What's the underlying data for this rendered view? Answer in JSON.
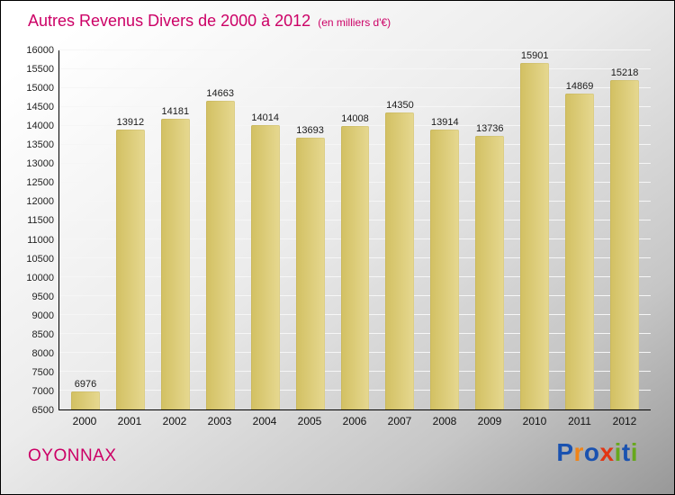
{
  "header": {
    "title": "Autres Revenus Divers de 2000 à 2012",
    "subtitle": "(en milliers d'€)"
  },
  "chart_data": {
    "type": "bar",
    "title": "Autres Revenus Divers de 2000 à 2012",
    "subtitle": "(en milliers d'€)",
    "categories": [
      "2000",
      "2001",
      "2002",
      "2003",
      "2004",
      "2005",
      "2006",
      "2007",
      "2008",
      "2009",
      "2010",
      "2011",
      "2012"
    ],
    "values": [
      6976,
      13912,
      14181,
      14663,
      14014,
      13693,
      14008,
      14350,
      13914,
      13736,
      15901,
      14869,
      15218
    ],
    "xlabel": "",
    "ylabel": "",
    "ylim": [
      6500,
      16000
    ],
    "ytick_step": 500,
    "grid": true,
    "legend": "none",
    "bar_labels": true
  },
  "footer": {
    "city": "OYONNAX"
  },
  "logo": {
    "name": "Proxiti",
    "letters": [
      {
        "ch": "P",
        "color": "#1a52b0"
      },
      {
        "ch": "r",
        "color": "#f08418"
      },
      {
        "ch": "o",
        "color": "#1a52b0"
      },
      {
        "ch": "x",
        "color": "#e23614"
      },
      {
        "ch": "i",
        "color": "#67a81c"
      },
      {
        "ch": "t",
        "color": "#1a52b0"
      },
      {
        "ch": "i",
        "color": "#67a81c"
      }
    ]
  },
  "colors": {
    "accent": "#cc0066",
    "bar_start": "#d2c062",
    "bar_end": "#e6d890",
    "grid": "#f6f6f6",
    "axis": "#000000",
    "tick_label": "#222222",
    "value_label": "#1a1a1a"
  }
}
